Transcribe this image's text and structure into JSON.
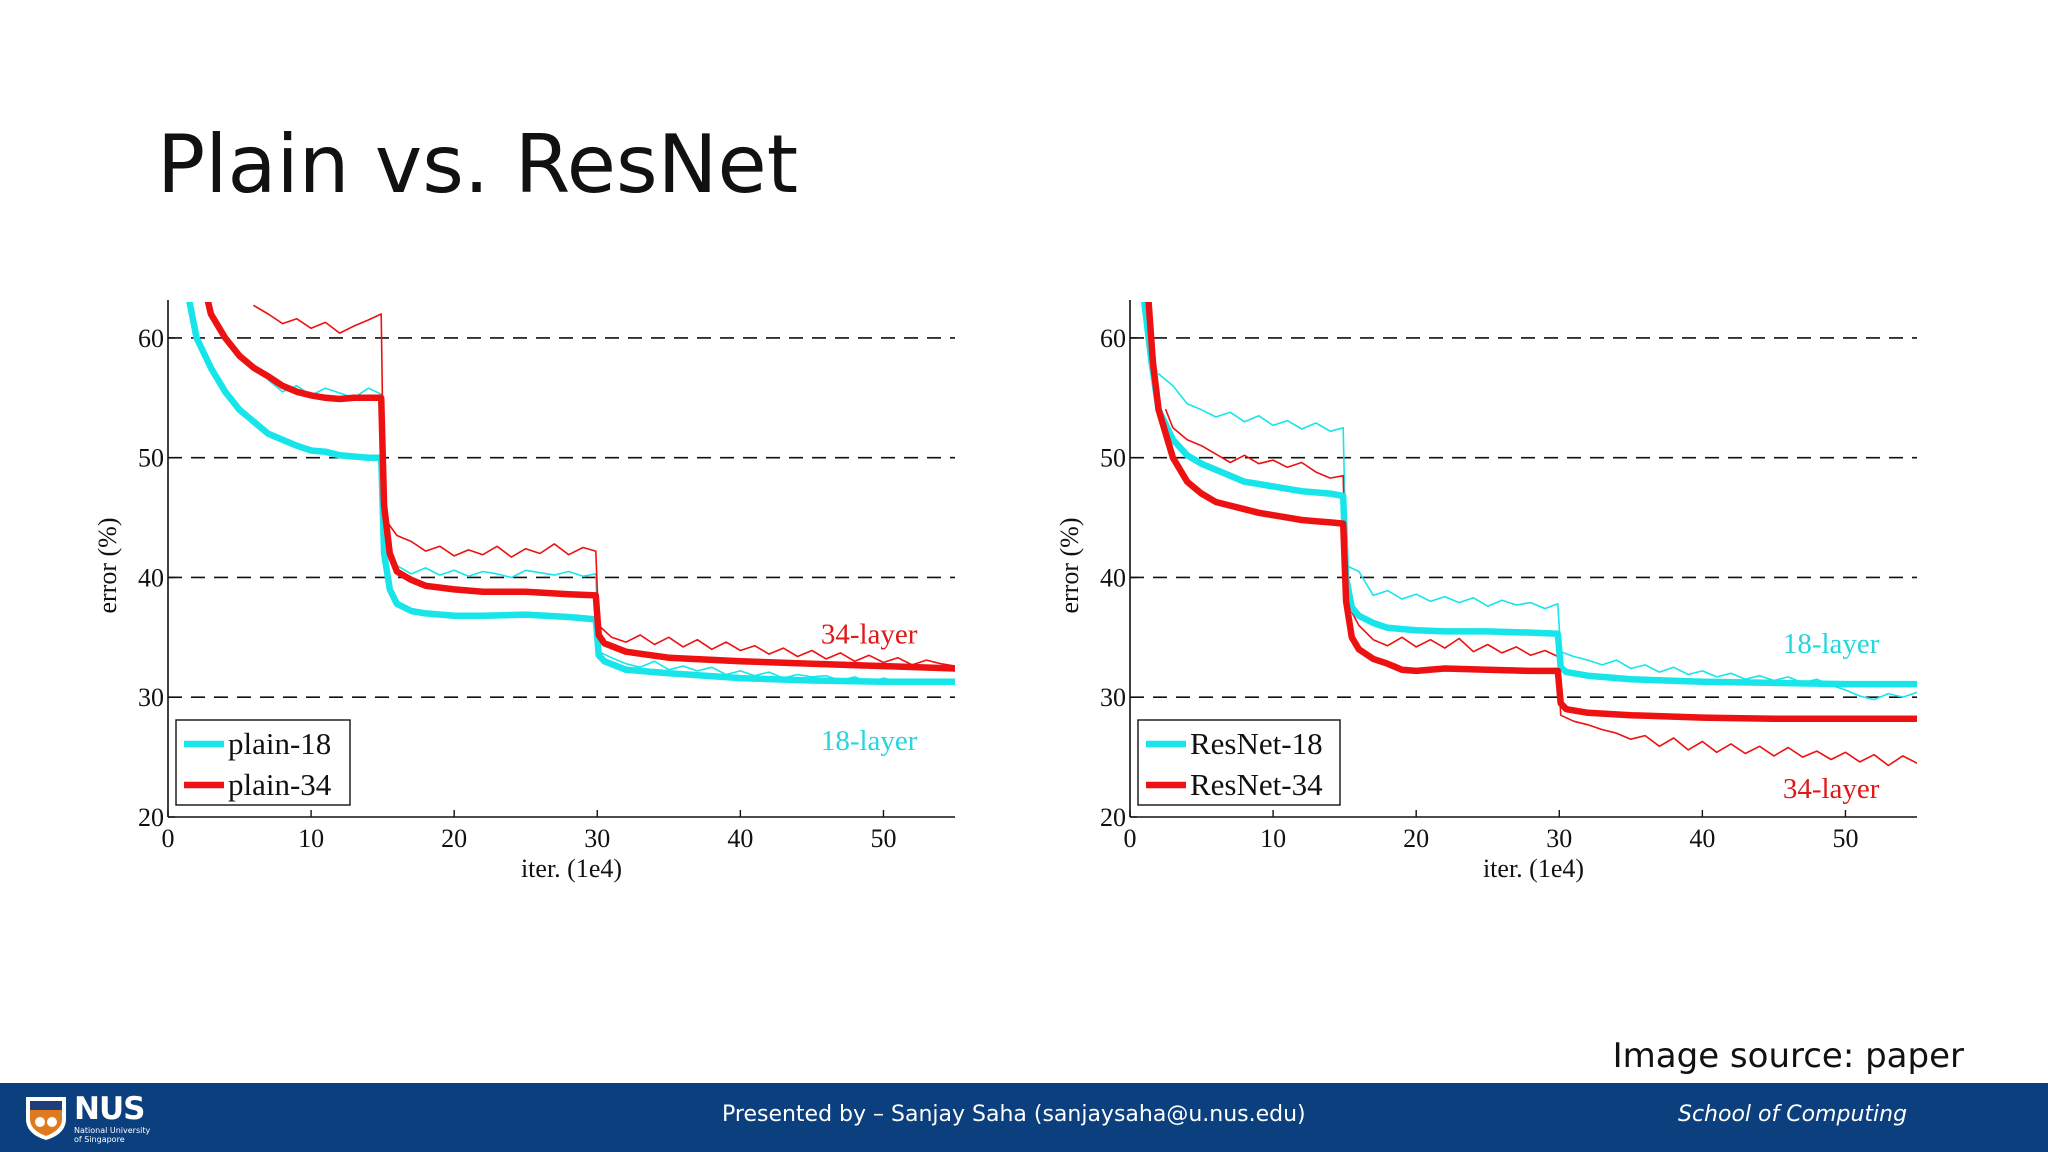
{
  "slide": {
    "title": "Plain vs. ResNet",
    "source_note": "Image source: paper"
  },
  "footer": {
    "logo_text": "NUS",
    "logo_subtext_line1": "National University",
    "logo_subtext_line2": "of Singapore",
    "presenter": "Presented by – Sanjay Saha (sanjaysaha@u.nus.edu)",
    "school": "School of Computing",
    "background_color": "#0b3f7e"
  },
  "colors": {
    "cyan": "#17e5ea",
    "red": "#ee1111",
    "red_label": "#e01818",
    "cyan_label": "#25d6dc"
  },
  "chart_data": [
    {
      "type": "line",
      "xlabel": "iter. (1e4)",
      "ylabel": "error (%)",
      "xlim": [
        0,
        55
      ],
      "ylim": [
        20,
        63
      ],
      "xticks": [
        0,
        10,
        20,
        30,
        40,
        50
      ],
      "yticks": [
        20,
        30,
        40,
        50,
        60
      ],
      "grid": "dashed horizontal at 30, 40, 50, 60",
      "legend_position": "bottom-left",
      "legend": [
        "plain-18",
        "plain-34"
      ],
      "annotations": [
        {
          "text": "34-layer",
          "x": 49,
          "y": 34.5,
          "color": "red"
        },
        {
          "text": "18-layer",
          "x": 49,
          "y": 25.6,
          "color": "cyan"
        }
      ],
      "series": [
        {
          "name": "plain-18",
          "color": "cyan",
          "width": "thick",
          "x": [
            1.5,
            2,
            3,
            4,
            5,
            6,
            7,
            8,
            9,
            10,
            11,
            12,
            13,
            14,
            14.9,
            15.1,
            15.5,
            16,
            17,
            18,
            20,
            22,
            25,
            28,
            29.9,
            30.1,
            30.5,
            32,
            35,
            40,
            45,
            50,
            55
          ],
          "y": [
            63,
            60,
            57.5,
            55.5,
            54,
            53,
            52,
            51.5,
            51,
            50.6,
            50.5,
            50.2,
            50.1,
            50,
            50,
            42,
            39,
            37.8,
            37.2,
            37,
            36.8,
            36.8,
            36.9,
            36.7,
            36.5,
            33.5,
            33,
            32.3,
            32,
            31.6,
            31.4,
            31.3,
            31.3
          ]
        },
        {
          "name": "plain-34",
          "color": "red",
          "width": "thick",
          "x": [
            2.8,
            3,
            4,
            5,
            6,
            7,
            8,
            9,
            10,
            11,
            12,
            13,
            14,
            14.9,
            15.1,
            15.5,
            16,
            17,
            18,
            20,
            22,
            25,
            28,
            29.9,
            30.1,
            30.5,
            32,
            35,
            40,
            45,
            50,
            55
          ],
          "y": [
            63,
            62,
            60,
            58.5,
            57.5,
            56.8,
            56,
            55.5,
            55.2,
            55,
            54.9,
            55,
            55,
            55,
            46,
            42,
            40.5,
            39.8,
            39.3,
            39,
            38.8,
            38.8,
            38.6,
            38.5,
            35.2,
            34.5,
            33.8,
            33.3,
            33,
            32.8,
            32.6,
            32.4
          ]
        },
        {
          "name": "plain-18 (train)",
          "color": "cyan",
          "width": "thin",
          "x": [
            7,
            8,
            9,
            10,
            11,
            12,
            13,
            14,
            14.9,
            15.1,
            16,
            17,
            18,
            19,
            20,
            21,
            22,
            23,
            24,
            25,
            26,
            27,
            28,
            29,
            29.9,
            30.1,
            31,
            32,
            33,
            34,
            35,
            36,
            37,
            38,
            39,
            40,
            41,
            42,
            43,
            44,
            45,
            46,
            47,
            48,
            49,
            50,
            51,
            52,
            53,
            54,
            55
          ],
          "y": [
            56.5,
            55.5,
            56,
            55.2,
            55.8,
            55.4,
            55,
            55.8,
            55.3,
            43,
            41,
            40.3,
            40.8,
            40.2,
            40.6,
            40.1,
            40.5,
            40.3,
            40,
            40.6,
            40.4,
            40.2,
            40.5,
            40.1,
            40.3,
            33.8,
            33.3,
            32.8,
            32.5,
            33,
            32.3,
            32.6,
            32.2,
            32.5,
            31.9,
            32.2,
            31.8,
            32.1,
            31.6,
            31.9,
            31.7,
            31.8,
            31.4,
            31.7,
            31.2,
            31.6,
            31.3,
            31.5,
            31.1,
            31.4,
            31.2
          ]
        },
        {
          "name": "plain-34 (train)",
          "color": "red",
          "width": "thin",
          "x": [
            6,
            7,
            8,
            9,
            10,
            11,
            12,
            13,
            14,
            14.9,
            15.1,
            16,
            17,
            18,
            19,
            20,
            21,
            22,
            23,
            24,
            25,
            26,
            27,
            28,
            29,
            29.9,
            30.1,
            31,
            32,
            33,
            34,
            35,
            36,
            37,
            38,
            39,
            40,
            41,
            42,
            43,
            44,
            45,
            46,
            47,
            48,
            49,
            50,
            51,
            52,
            53,
            54,
            55
          ],
          "y": [
            62.7,
            62,
            61.2,
            61.6,
            60.8,
            61.3,
            60.4,
            61,
            61.5,
            62,
            45,
            43.5,
            43,
            42.2,
            42.6,
            41.8,
            42.3,
            41.9,
            42.6,
            41.7,
            42.4,
            42,
            42.8,
            41.9,
            42.5,
            42.2,
            36,
            35,
            34.6,
            35.2,
            34.4,
            35,
            34.2,
            34.8,
            34,
            34.6,
            33.9,
            34.3,
            33.6,
            34.1,
            33.4,
            33.9,
            33.2,
            33.7,
            33,
            33.5,
            32.9,
            33.3,
            32.7,
            33.1,
            32.8,
            32.6
          ]
        }
      ]
    },
    {
      "type": "line",
      "xlabel": "iter. (1e4)",
      "ylabel": "error (%)",
      "xlim": [
        0,
        55
      ],
      "ylim": [
        20,
        63
      ],
      "xticks": [
        0,
        10,
        20,
        30,
        40,
        50
      ],
      "yticks": [
        20,
        30,
        40,
        50,
        60
      ],
      "grid": "dashed horizontal at 30, 40, 50, 60",
      "legend_position": "bottom-left",
      "legend": [
        "ResNet-18",
        "ResNet-34"
      ],
      "annotations": [
        {
          "text": "18-layer",
          "x": 49,
          "y": 33.7,
          "color": "cyan"
        },
        {
          "text": "34-layer",
          "x": 49,
          "y": 21.6,
          "color": "red"
        }
      ],
      "series": [
        {
          "name": "ResNet-18",
          "color": "cyan",
          "width": "thick",
          "x": [
            1,
            1.5,
            2,
            3,
            4,
            5,
            6,
            7,
            8,
            9,
            10,
            11,
            12,
            13,
            14,
            14.9,
            15.1,
            15.5,
            16,
            17,
            18,
            20,
            22,
            25,
            28,
            29.9,
            30.1,
            30.5,
            32,
            35,
            40,
            45,
            50,
            55
          ],
          "y": [
            63,
            58,
            54,
            51.5,
            50.2,
            49.5,
            49,
            48.5,
            48,
            47.8,
            47.6,
            47.4,
            47.2,
            47.1,
            47,
            46.8,
            40,
            37.5,
            36.8,
            36.2,
            35.8,
            35.6,
            35.5,
            35.5,
            35.4,
            35.3,
            32.5,
            32.1,
            31.8,
            31.5,
            31.3,
            31.2,
            31.1,
            31.1
          ]
        },
        {
          "name": "ResNet-34",
          "color": "red",
          "width": "thick",
          "x": [
            1.3,
            1.6,
            2,
            3,
            4,
            5,
            6,
            7,
            8,
            9,
            10,
            11,
            12,
            13,
            14,
            14.9,
            15.1,
            15.5,
            16,
            17,
            18,
            19,
            20,
            22,
            25,
            28,
            29.9,
            30.1,
            30.5,
            32,
            35,
            40,
            45,
            50,
            55
          ],
          "y": [
            63,
            58,
            54,
            50,
            48,
            47,
            46.3,
            46,
            45.7,
            45.4,
            45.2,
            45,
            44.8,
            44.7,
            44.6,
            44.5,
            38,
            35,
            34,
            33.2,
            32.8,
            32.3,
            32.2,
            32.4,
            32.3,
            32.2,
            32.2,
            29.5,
            29,
            28.7,
            28.5,
            28.3,
            28.2,
            28.2,
            28.2
          ]
        },
        {
          "name": "ResNet-18 (train)",
          "color": "cyan",
          "width": "thin",
          "x": [
            2,
            3,
            4,
            5,
            6,
            7,
            8,
            9,
            10,
            11,
            12,
            13,
            14,
            14.9,
            15.1,
            16,
            17,
            18,
            19,
            20,
            21,
            22,
            23,
            24,
            25,
            26,
            27,
            28,
            29,
            29.9,
            30.1,
            31,
            32,
            33,
            34,
            35,
            36,
            37,
            38,
            39,
            40,
            41,
            42,
            43,
            44,
            45,
            46,
            47,
            48,
            49,
            50,
            51,
            52,
            53,
            54,
            55
          ],
          "y": [
            57,
            56,
            54.5,
            54,
            53.4,
            53.8,
            53,
            53.5,
            52.7,
            53.1,
            52.4,
            52.9,
            52.2,
            52.5,
            41,
            40.5,
            38.5,
            38.9,
            38.2,
            38.6,
            38,
            38.4,
            37.9,
            38.3,
            37.6,
            38.1,
            37.7,
            37.9,
            37.4,
            37.8,
            33.8,
            33.4,
            33.1,
            32.7,
            33.1,
            32.4,
            32.7,
            32.1,
            32.5,
            31.9,
            32.2,
            31.7,
            32,
            31.5,
            31.8,
            31.4,
            31.7,
            31.2,
            31.5,
            31,
            30.6,
            30.1,
            29.8,
            30.3,
            30,
            30.4
          ]
        },
        {
          "name": "ResNet-34 (train)",
          "color": "red",
          "width": "thin",
          "x": [
            2.5,
            3,
            4,
            5,
            6,
            7,
            8,
            9,
            10,
            11,
            12,
            13,
            14,
            14.9,
            15.1,
            16,
            17,
            18,
            19,
            20,
            21,
            22,
            23,
            24,
            25,
            26,
            27,
            28,
            29,
            29.9,
            30.1,
            31,
            32,
            33,
            34,
            35,
            36,
            37,
            38,
            39,
            40,
            41,
            42,
            43,
            44,
            45,
            46,
            47,
            48,
            49,
            50,
            51,
            52,
            53,
            54,
            55
          ],
          "y": [
            54,
            52.5,
            51.5,
            51,
            50.3,
            49.6,
            50.2,
            49.5,
            49.8,
            49.2,
            49.6,
            48.8,
            48.3,
            48.5,
            38,
            36,
            34.8,
            34.3,
            35,
            34.2,
            34.8,
            34.1,
            34.9,
            33.8,
            34.4,
            33.7,
            34.2,
            33.5,
            33.9,
            33.4,
            28.5,
            28,
            27.7,
            27.3,
            27,
            26.5,
            26.8,
            25.9,
            26.6,
            25.6,
            26.3,
            25.4,
            26.1,
            25.3,
            25.9,
            25.1,
            25.8,
            25,
            25.5,
            24.8,
            25.4,
            24.6,
            25.2,
            24.3,
            25.1,
            24.5
          ]
        }
      ]
    }
  ]
}
